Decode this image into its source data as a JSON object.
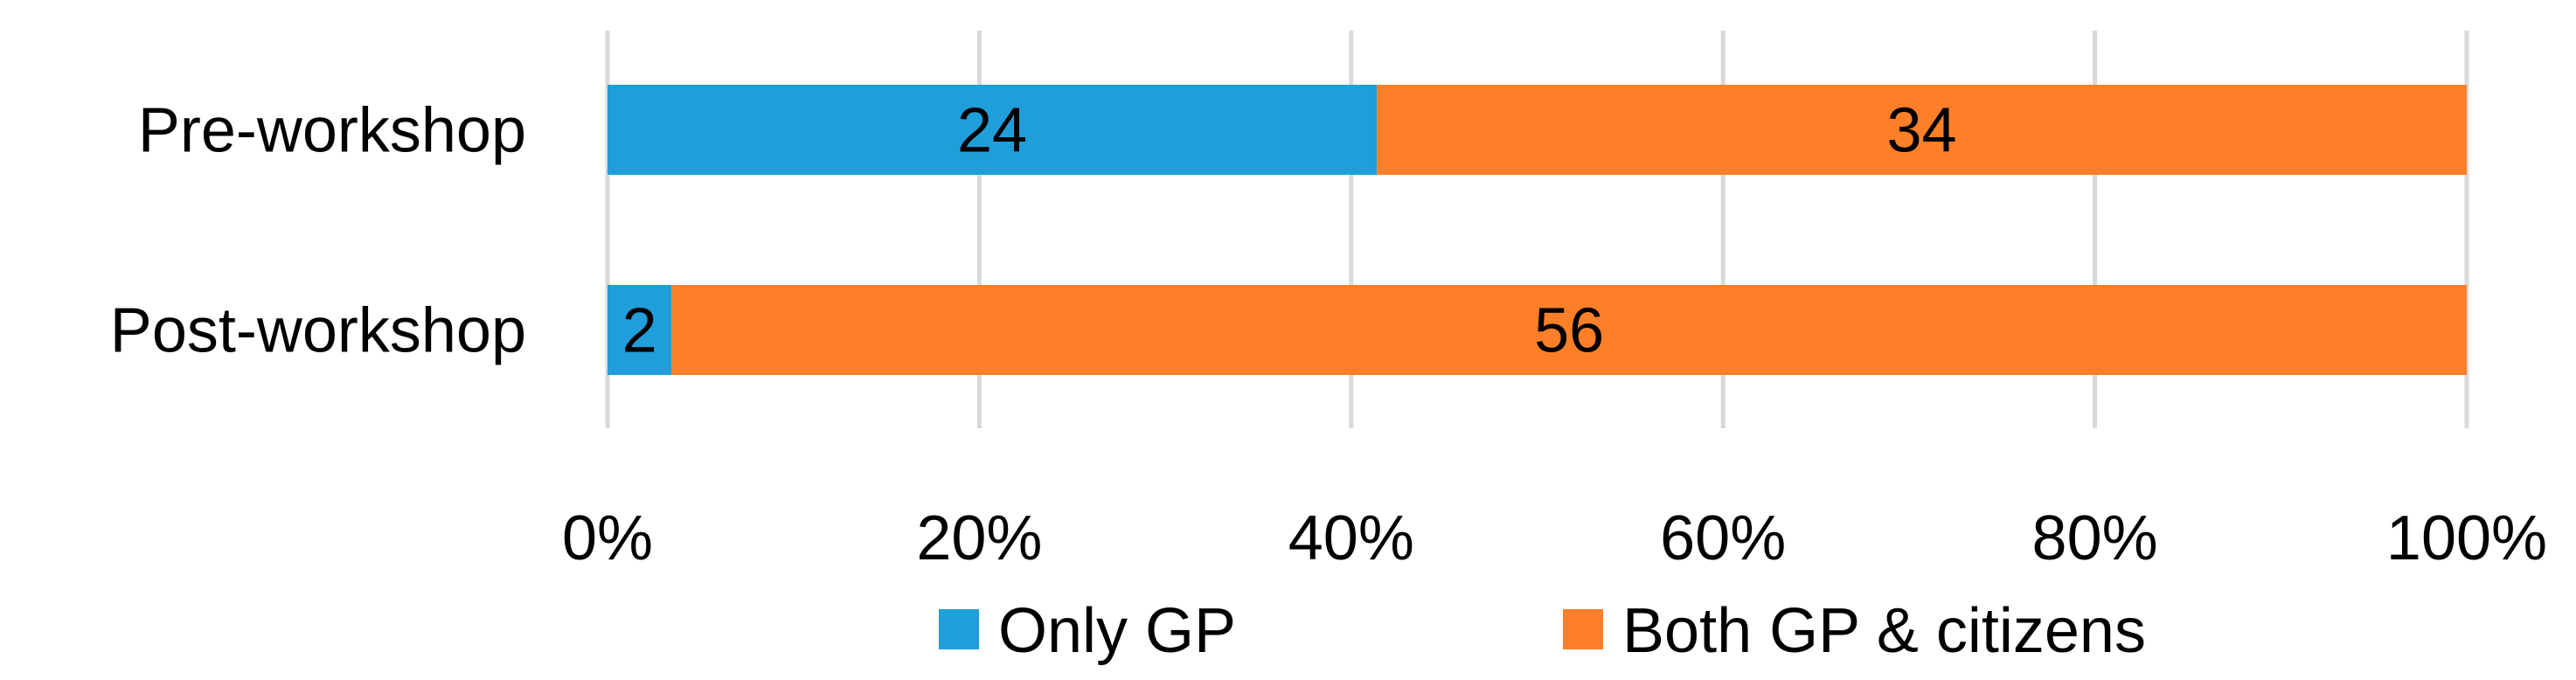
{
  "chart_data": {
    "type": "bar",
    "orientation": "horizontal",
    "stacked": "percent",
    "categories": [
      "Pre-workshop",
      "Post-workshop"
    ],
    "series": [
      {
        "name": "Only GP",
        "values": [
          24,
          2
        ],
        "color": "#1f9ed9"
      },
      {
        "name": "Both GP & citizens",
        "values": [
          34,
          56
        ],
        "color": "#fd7f28"
      }
    ],
    "x_ticks": [
      "0%",
      "20%",
      "40%",
      "60%",
      "80%",
      "100%"
    ],
    "xlim": [
      0,
      100
    ],
    "grid": true,
    "legend_position": "bottom",
    "title": "",
    "xlabel": "",
    "ylabel": ""
  }
}
